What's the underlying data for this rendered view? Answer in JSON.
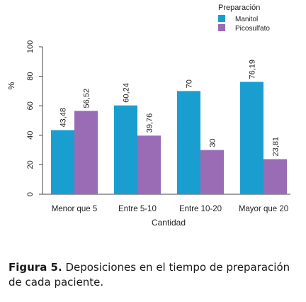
{
  "chart_data": {
    "type": "bar",
    "categories": [
      "Menor que 5",
      "Entre 5-10",
      "Entre 10-20",
      "Mayor que 20"
    ],
    "series": [
      {
        "name": "Manitol",
        "values": [
          43.48,
          60.24,
          70,
          76.19
        ],
        "labels": [
          "43,48",
          "60,24",
          "70",
          "76,19"
        ],
        "color": "#1a9ed0"
      },
      {
        "name": "Picosulfato",
        "values": [
          56.52,
          39.76,
          30,
          23.81
        ],
        "labels": [
          "56,52",
          "39,76",
          "30",
          "23,81"
        ],
        "color": "#9b6cb6"
      }
    ],
    "xlabel": "Cantidad",
    "ylabel": "%",
    "ylim": [
      0,
      100
    ],
    "yticks": [
      0,
      20,
      40,
      60,
      80,
      100
    ],
    "legend_title": "Preparación",
    "legend_position": "top-right",
    "grid": false
  },
  "caption": {
    "label": "Figura 5.",
    "text": " Deposiciones en el tiempo de preparación de cada paciente."
  }
}
